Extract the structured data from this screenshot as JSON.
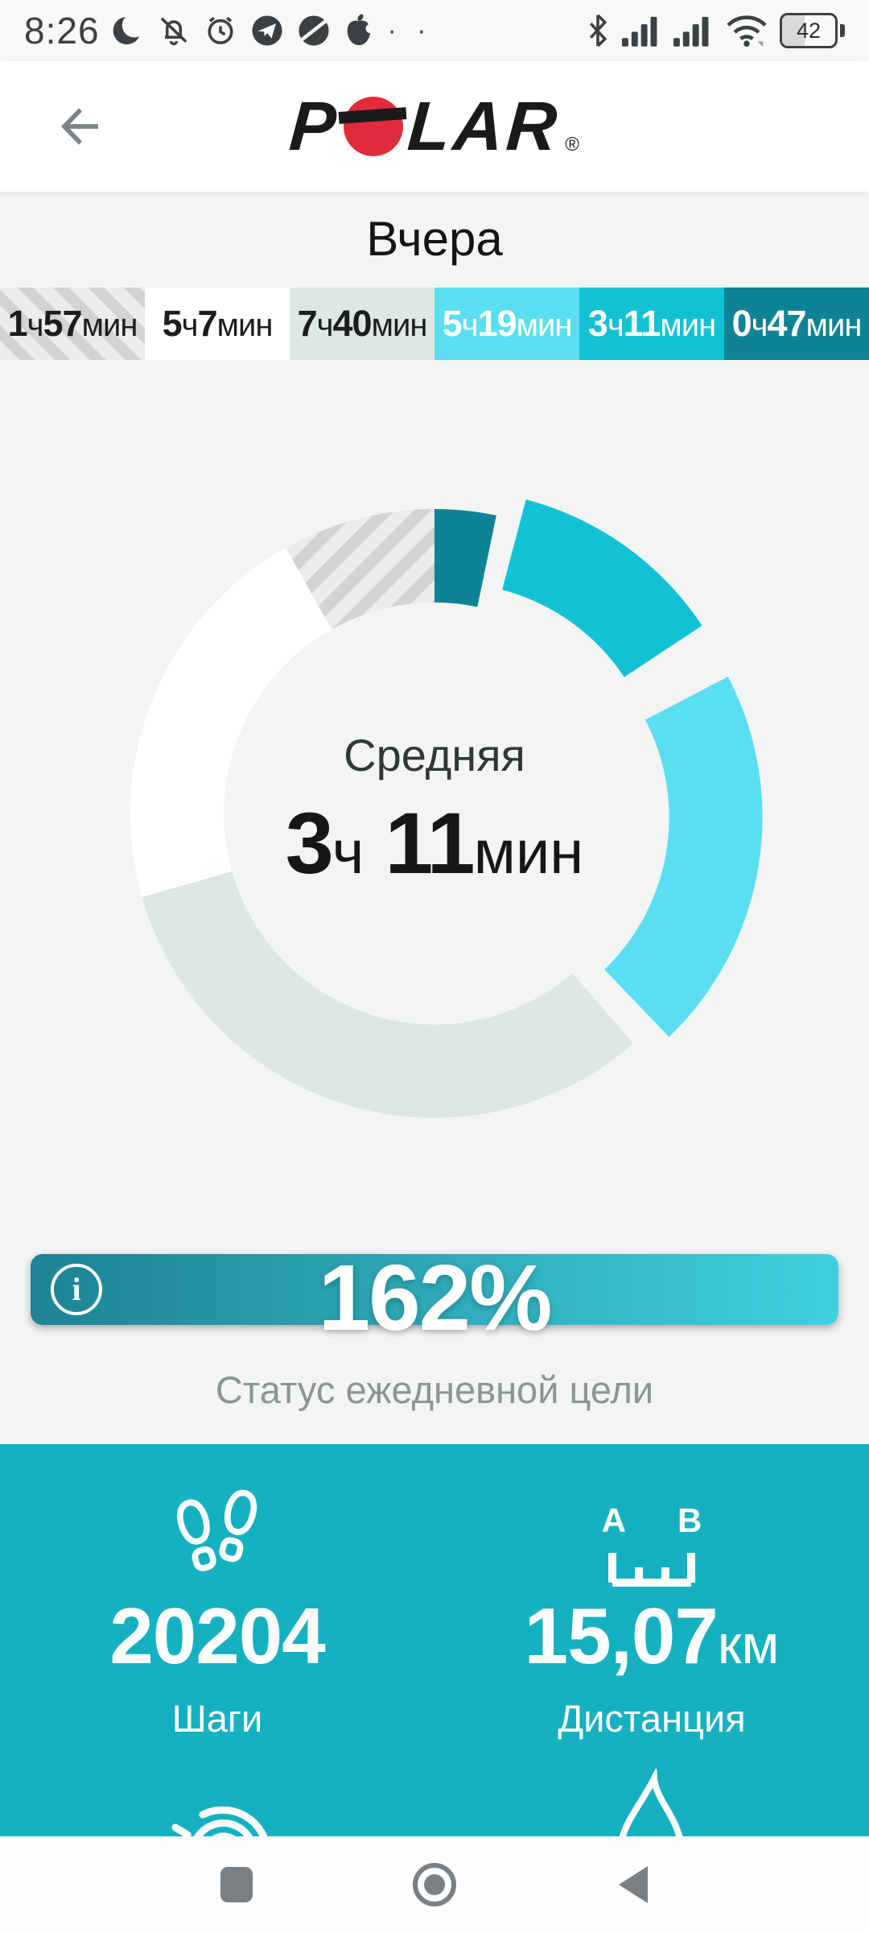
{
  "status_bar": {
    "time": "8:26",
    "more_dots": "· ·",
    "battery_level": "42",
    "left_icons": [
      "moon-icon",
      "bell-off-icon",
      "alarm-clock-icon",
      "telegram-icon",
      "browser-icon",
      "apple-icon"
    ],
    "right_icons": [
      "bluetooth-icon",
      "cell-signal-1-icon",
      "cell-signal-2-icon",
      "wifi-icon",
      "battery-icon"
    ]
  },
  "header": {
    "logo": {
      "p": "P",
      "lar": "LAR",
      "reg": "®"
    }
  },
  "date_title": "Вчера",
  "units": {
    "h": "ч",
    "min": "мин"
  },
  "chart_data": {
    "type": "pie",
    "title": "Вчера",
    "subtype": "24h-activity-donut",
    "center": {
      "label": "Средняя",
      "hours": "3",
      "minutes": "11"
    },
    "total_minutes": 1441,
    "legend_position": "top",
    "segments": [
      {
        "label": "1ч57мин",
        "hours": "1",
        "minutes": "57",
        "value_min": 117,
        "pattern": "hatch",
        "color": "#ececec",
        "stripe_color": "#d2d3d3",
        "text_color": "#1c1c1c",
        "exploded": false
      },
      {
        "label": "5ч7мин",
        "hours": "5",
        "minutes": "7",
        "value_min": 307,
        "pattern": "solid",
        "color": "#ffffff",
        "text_color": "#1c1c1c",
        "exploded": false
      },
      {
        "label": "7ч40мин",
        "hours": "7",
        "minutes": "40",
        "value_min": 460,
        "pattern": "solid",
        "color": "#dde8e5",
        "text_color": "#1c1c1c",
        "exploded": false
      },
      {
        "label": "5ч19мин",
        "hours": "5",
        "minutes": "19",
        "value_min": 319,
        "pattern": "solid",
        "color": "#5bdff0",
        "text_color": "#ffffff",
        "exploded": true
      },
      {
        "label": "3ч11мин",
        "hours": "3",
        "minutes": "11",
        "value_min": 191,
        "pattern": "solid",
        "color": "#12c2d4",
        "text_color": "#ffffff",
        "exploded": true
      },
      {
        "label": "0ч47мин",
        "hours": "0",
        "minutes": "47",
        "value_min": 47,
        "pattern": "solid",
        "color": "#0f8396",
        "text_color": "#ffffff",
        "exploded": false
      }
    ]
  },
  "goal": {
    "percent": "162%",
    "caption": "Статус ежедневной цели",
    "info_glyph": "i",
    "gradient_from": "#1d8494",
    "gradient_to": "#40d0dd"
  },
  "metrics": {
    "background": "#15b1c1",
    "items": [
      {
        "icon": "footsteps-icon",
        "value": "20204",
        "unit": "",
        "label": "Шаги"
      },
      {
        "icon": "distance-icon",
        "marker_a": "A",
        "marker_b": "B",
        "value": "15,07",
        "unit": "км",
        "label": "Дистанция"
      }
    ],
    "partial_icons": [
      "active-time-icon",
      "calories-icon"
    ]
  },
  "colors": {
    "page_bg": "#f3f5f5",
    "header_bg": "#ffffff",
    "status_text": "#3d4043",
    "nav_icon": "#7b8084",
    "caption_text": "#8e9494"
  }
}
